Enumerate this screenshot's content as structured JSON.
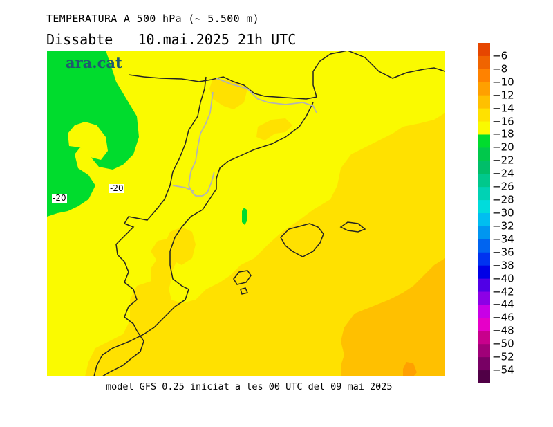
{
  "header": {
    "title": "TEMPERATURA A 500 hPa (~ 5.500 m)",
    "date_line": "Dissabte   10.mai.2025 21h UTC"
  },
  "logo": {
    "text": "ara.cat",
    "color": "#1f5a6e"
  },
  "footer": {
    "text": "model GFS 0.25 iniciat a les 00 UTC del 09 mai 2025"
  },
  "map": {
    "variable": "temperature_500hPa",
    "units": "°C",
    "fill_colors": {
      "minus16_to_minus14": "#ffc000",
      "minus18_to_minus16": "#ffe100",
      "minus20_to_minus18": "#fafa00",
      "minus22_to_minus20": "#00dc2d",
      "coastline": "#222222",
      "border": "#b4b4b4"
    },
    "contour_labels": [
      "-20",
      "-20"
    ]
  },
  "colorbar": {
    "labels": [
      "-6",
      "-8",
      "-10",
      "-12",
      "-14",
      "-16",
      "-18",
      "-20",
      "-22",
      "-24",
      "-26",
      "-28",
      "-30",
      "-32",
      "-34",
      "-36",
      "-38",
      "-40",
      "-42",
      "-44",
      "-46",
      "-48",
      "-50",
      "-52",
      "-54"
    ],
    "colors": [
      "#e64600",
      "#f06400",
      "#ff8200",
      "#ffa000",
      "#ffc000",
      "#ffe100",
      "#fafa00",
      "#00dc2d",
      "#00c84b",
      "#00be69",
      "#00c88c",
      "#00d2b4",
      "#00dcdc",
      "#00bef0",
      "#0096f0",
      "#0064f0",
      "#0032f0",
      "#0000e6",
      "#5000e6",
      "#8c00e6",
      "#c800e6",
      "#e600c8",
      "#c8008c",
      "#a00078",
      "#780064",
      "#500046"
    ]
  }
}
